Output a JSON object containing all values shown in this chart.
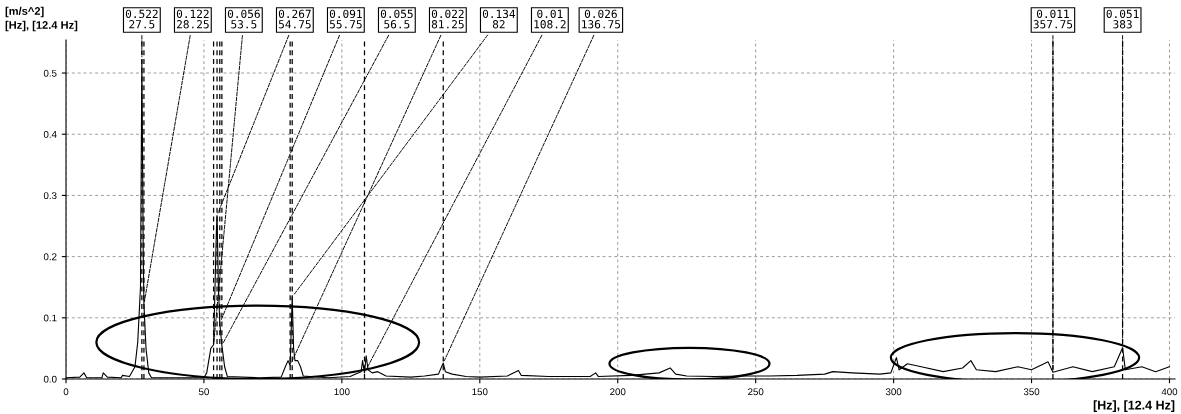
{
  "chart_data": {
    "type": "line",
    "ylabel": "[m/s^2]",
    "xlabel": "[Hz], [12.4 Hz]",
    "annotations": [
      "[Hz], [12.4 Hz]",
      {
        "text": "0.522\n27.5",
        "x": 27.5,
        "y": 0.522
      },
      {
        "text": "0.122\n28.25",
        "x": 28.25,
        "y": 0.122
      },
      {
        "text": "0.056\n53.5",
        "x": 53.5,
        "y": 0.056
      },
      {
        "text": "0.267\n54.75",
        "x": 54.75,
        "y": 0.267
      },
      {
        "text": "0.091\n55.75",
        "x": 55.75,
        "y": 0.091
      },
      {
        "text": "0.055\n56.5",
        "x": 56.5,
        "y": 0.055
      },
      {
        "text": "0.022\n81.25",
        "x": 81.25,
        "y": 0.022
      },
      {
        "text": "0.134\n82",
        "x": 82,
        "y": 0.134
      },
      {
        "text": "0.01\n108.2",
        "x": 108.2,
        "y": 0.01
      },
      {
        "text": "0.026\n136.75",
        "x": 136.75,
        "y": 0.026
      },
      {
        "text": "0.011\n357.75",
        "x": 357.75,
        "y": 0.011
      },
      {
        "text": "0.051\n383",
        "x": 383,
        "y": 0.051
      }
    ],
    "x": [
      0,
      5,
      6.5,
      7.5,
      13,
      13.5,
      15,
      20,
      20.5,
      23,
      25,
      26,
      27,
      27.5,
      28,
      28.25,
      29,
      30,
      31,
      40,
      50,
      51,
      52.5,
      53.5,
      54.5,
      54.75,
      55.25,
      55.75,
      56.5,
      57.5,
      58.5,
      70,
      78,
      79.5,
      80.5,
      81.25,
      82,
      82.5,
      83,
      84,
      85,
      86,
      95,
      103,
      105,
      107,
      107.5,
      108.2,
      108.8,
      109.5,
      111,
      113,
      116,
      125,
      130,
      135,
      136.75,
      137.5,
      140,
      145,
      150,
      160,
      164,
      165,
      175,
      190,
      192,
      193,
      205,
      210,
      215,
      219,
      221,
      225,
      235,
      245,
      255,
      265,
      275,
      278,
      285,
      295,
      299,
      301,
      302,
      305,
      310,
      318,
      325,
      328,
      330,
      337,
      345,
      350,
      356,
      357.75,
      365,
      372,
      380,
      383,
      384,
      390,
      395,
      400
    ],
    "series": [
      {
        "color": "#000000",
        "values": [
          0.002,
          0.003,
          0.01,
          0.002,
          0.002,
          0.01,
          0.003,
          0.002,
          0.006,
          0.004,
          0.02,
          0.06,
          0.15,
          0.522,
          0.2,
          0.122,
          0.05,
          0.01,
          0.002,
          0.002,
          0.002,
          0.01,
          0.05,
          0.056,
          0.24,
          0.267,
          0.15,
          0.091,
          0.055,
          0.02,
          0.004,
          0.002,
          0.003,
          0.02,
          0.03,
          0.022,
          0.134,
          0.05,
          0.03,
          0.03,
          0.02,
          0.005,
          0.002,
          0.004,
          0.008,
          0.012,
          0.03,
          0.01,
          0.038,
          0.015,
          0.01,
          0.012,
          0.005,
          0.003,
          0.005,
          0.008,
          0.026,
          0.012,
          0.008,
          0.004,
          0.003,
          0.005,
          0.014,
          0.006,
          0.004,
          0.004,
          0.01,
          0.004,
          0.006,
          0.008,
          0.01,
          0.018,
          0.008,
          0.005,
          0.004,
          0.005,
          0.005,
          0.006,
          0.008,
          0.012,
          0.01,
          0.008,
          0.01,
          0.035,
          0.015,
          0.025,
          0.02,
          0.012,
          0.018,
          0.03,
          0.015,
          0.012,
          0.02,
          0.015,
          0.028,
          0.011,
          0.02,
          0.012,
          0.02,
          0.051,
          0.015,
          0.02,
          0.012,
          0.02
        ]
      }
    ],
    "xlim": [
      0,
      402
    ],
    "ylim": [
      0,
      0.554
    ],
    "xticks": [
      0,
      50,
      100,
      150,
      200,
      250,
      300,
      350,
      400
    ],
    "yticks": [
      {
        "value": 0,
        "label": "0.0"
      },
      0.1,
      0.2,
      0.3,
      0.4,
      0.5
    ],
    "ref_lines": [
      {
        "axis": "x",
        "value": 27.5,
        "color": "#000000",
        "line_style": "dashed"
      },
      {
        "axis": "x",
        "value": 28.25,
        "color": "#000000",
        "line_style": "dashed"
      },
      {
        "axis": "x",
        "value": 53.5,
        "color": "#000000",
        "line_style": "dashed"
      },
      {
        "axis": "x",
        "value": 54.75,
        "color": "#000000",
        "line_style": "dashed"
      },
      {
        "axis": "x",
        "value": 55.75,
        "color": "#000000",
        "line_style": "dashed"
      },
      {
        "axis": "x",
        "value": 56.5,
        "color": "#000000",
        "line_style": "dashed"
      },
      {
        "axis": "x",
        "value": 81.25,
        "color": "#000000",
        "line_style": "dashed"
      },
      {
        "axis": "x",
        "value": 82,
        "color": "#000000",
        "line_style": "dashed"
      },
      {
        "axis": "x",
        "value": 108.2,
        "color": "#000000",
        "line_style": "dashed"
      },
      {
        "axis": "x",
        "value": 136.75,
        "color": "#000000",
        "line_style": "dashed"
      },
      {
        "axis": "x",
        "value": 357.75,
        "color": "#000000",
        "line_style": "dashed"
      },
      {
        "axis": "x",
        "value": 383,
        "color": "#000000",
        "line_style": "dashed"
      }
    ],
    "grid": true,
    "legend": false,
    "marker": "none",
    "line_style": "solid"
  }
}
